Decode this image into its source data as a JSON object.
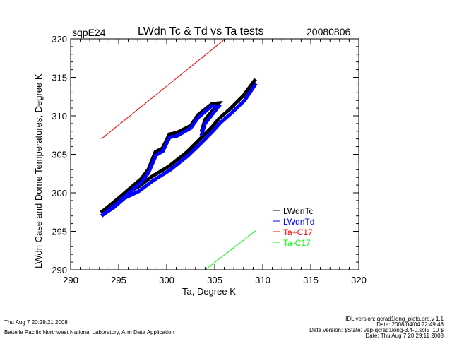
{
  "chart_data": {
    "type": "line",
    "title": "LWdn Tc & Td vs Ta tests",
    "site": "sqpE24",
    "date": "20080806",
    "xlabel": "Ta, Degree K",
    "ylabel": "LWdn Case and Dome Temperatures, Degree K",
    "xlim": [
      290,
      320
    ],
    "ylim": [
      290,
      320
    ],
    "xticks": [
      290,
      295,
      300,
      305,
      310,
      315,
      320
    ],
    "yticks": [
      290,
      295,
      300,
      305,
      310,
      315,
      320
    ],
    "grid": false,
    "legend_placement": "bottom-right",
    "series": [
      {
        "name": "LWdnTc",
        "color": "#000000",
        "branches": [
          [
            [
              293.16,
              297.43
            ],
            [
              294.41,
              298.62
            ],
            [
              295.51,
              299.82
            ],
            [
              296.99,
              300.73
            ],
            [
              298.46,
              302.11
            ],
            [
              300.29,
              303.49
            ],
            [
              302.13,
              305.32
            ],
            [
              303.6,
              307.16
            ],
            [
              304.71,
              308.53
            ],
            [
              305.44,
              309.63
            ],
            [
              306.54,
              310.83
            ],
            [
              308.01,
              312.66
            ],
            [
              309.26,
              314.77
            ]
          ],
          [
            [
              293.16,
              297.43
            ],
            [
              294.78,
              299.08
            ],
            [
              297.35,
              301.83
            ],
            [
              298.09,
              303.03
            ],
            [
              298.82,
              305.32
            ],
            [
              299.56,
              305.78
            ],
            [
              300.29,
              307.61
            ],
            [
              301.03,
              307.8
            ],
            [
              302.5,
              308.72
            ],
            [
              303.24,
              310.09
            ],
            [
              304.71,
              311.56
            ],
            [
              305.44,
              311.65
            ],
            [
              304.0,
              309.5
            ],
            [
              303.6,
              307.9
            ]
          ]
        ]
      },
      {
        "name": "LWdnTd",
        "color": "#0000ff",
        "branches": [
          [
            [
              293.2,
              297.0
            ],
            [
              294.5,
              298.1
            ],
            [
              295.6,
              299.3
            ],
            [
              297.1,
              300.2
            ],
            [
              298.6,
              301.6
            ],
            [
              300.4,
              303.0
            ],
            [
              302.2,
              304.8
            ],
            [
              303.7,
              306.6
            ],
            [
              304.8,
              308.0
            ],
            [
              305.6,
              309.1
            ],
            [
              306.7,
              310.3
            ],
            [
              308.1,
              312.0
            ],
            [
              309.3,
              314.2
            ]
          ],
          [
            [
              293.2,
              297.0
            ],
            [
              294.8,
              298.6
            ],
            [
              297.4,
              301.4
            ],
            [
              298.1,
              302.6
            ],
            [
              298.9,
              304.9
            ],
            [
              299.6,
              305.4
            ],
            [
              300.3,
              307.2
            ],
            [
              301.1,
              307.4
            ],
            [
              302.5,
              308.4
            ],
            [
              303.3,
              309.8
            ],
            [
              304.7,
              311.3
            ],
            [
              305.4,
              311.2
            ],
            [
              304.0,
              309.0
            ],
            [
              303.6,
              307.4
            ]
          ]
        ]
      },
      {
        "name": "Ta+C17",
        "color": "#ff0000",
        "branches": [
          [
            [
              293.2,
              307.0
            ],
            [
              305.9,
              319.8
            ]
          ]
        ]
      },
      {
        "name": "Ta-C17",
        "color": "#00ff00",
        "branches": [
          [
            [
              304.0,
              290.0
            ],
            [
              309.3,
              295.1
            ]
          ]
        ]
      }
    ]
  },
  "footer": {
    "left_timestamp": "Thu Aug  7 20:29:21 2008",
    "left_org": "Battelle Pacific Northwest National Laboratory, Arm Data Application",
    "right_lines": [
      "IDL version: qcrad1long_plots.pro,v 1.1",
      "Date: 2008/04/04 22:49:48",
      "Data version: $State: vap-qcrad1long-3.4-0.sol5_10 $",
      "Date: Thu Aug  7 20:29:11 2008"
    ]
  }
}
